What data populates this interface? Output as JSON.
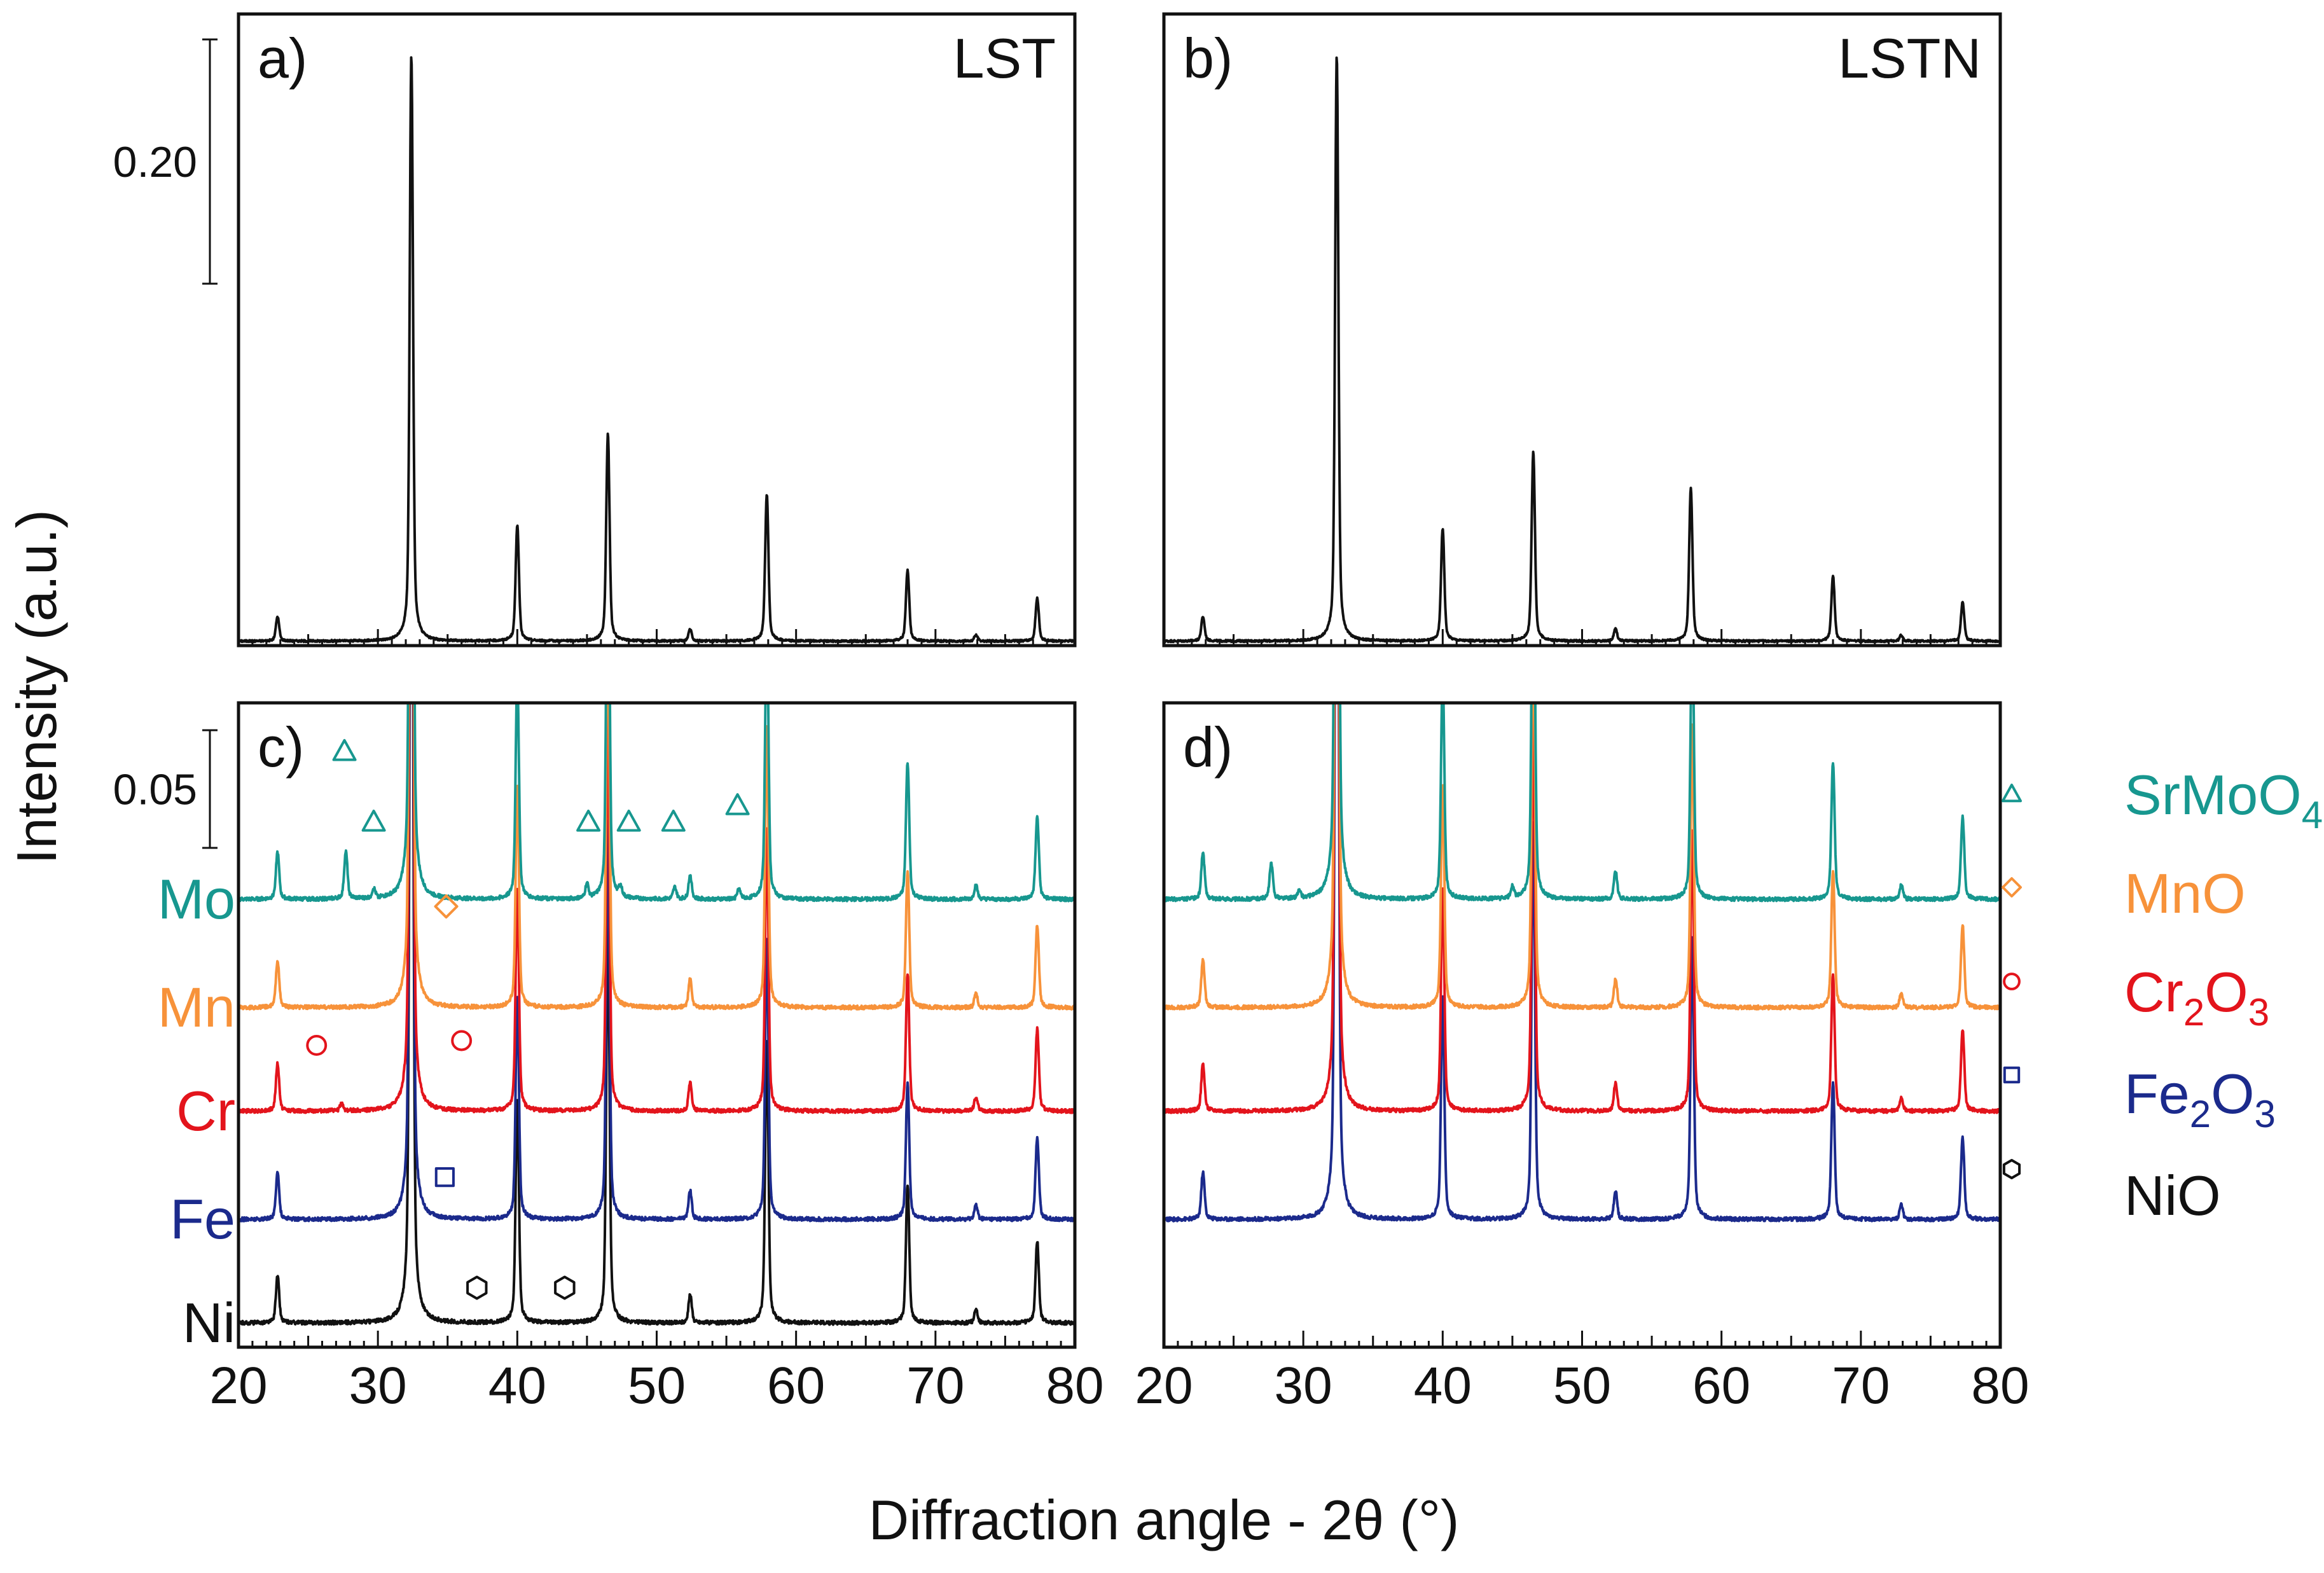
{
  "figure": {
    "xlabel": "Diffraction angle - 2θ (°)",
    "ylabel": "Intensity (a.u.)"
  },
  "colors": {
    "Mo": "#17978f",
    "Mn": "#f7923a",
    "Cr": "#e3141c",
    "Fe": "#1b2a8c",
    "Ni": "#111111"
  },
  "chart_data": [
    {
      "type": "line",
      "panel": "a)",
      "title": "LST",
      "xlim": [
        20,
        80
      ],
      "x_ticks": [
        20,
        30,
        40,
        50,
        60,
        70,
        80
      ],
      "scale_bar": {
        "label": "0.20",
        "value": 0.2
      },
      "series": [
        {
          "color": "#111111",
          "peaks": [
            [
              22.8,
              0.02
            ],
            [
              32.4,
              0.48
            ],
            [
              40.0,
              0.095
            ],
            [
              46.5,
              0.17
            ],
            [
              52.4,
              0.01
            ],
            [
              57.9,
              0.12
            ],
            [
              68.0,
              0.058
            ],
            [
              72.9,
              0.005
            ],
            [
              77.3,
              0.035
            ]
          ]
        }
      ]
    },
    {
      "type": "line",
      "panel": "b)",
      "title": "LSTN",
      "xlim": [
        20,
        80
      ],
      "x_ticks": [
        20,
        30,
        40,
        50,
        60,
        70,
        80
      ],
      "series": [
        {
          "color": "#111111",
          "peaks": [
            [
              22.8,
              0.02
            ],
            [
              32.4,
              0.48
            ],
            [
              40.0,
              0.092
            ],
            [
              46.5,
              0.155
            ],
            [
              52.4,
              0.01
            ],
            [
              57.8,
              0.125
            ],
            [
              68.0,
              0.053
            ],
            [
              72.9,
              0.005
            ],
            [
              77.3,
              0.032
            ]
          ]
        }
      ]
    },
    {
      "type": "line",
      "panel": "c)",
      "xlim": [
        20,
        80
      ],
      "x_ticks": [
        20,
        30,
        40,
        50,
        60,
        70,
        80
      ],
      "scale_bar": {
        "label": "0.05",
        "value": 0.05
      },
      "series": [
        {
          "name": "Ni",
          "color": "#111111",
          "offset": 0,
          "peaks": [
            [
              22.8,
              0.02
            ],
            [
              32.4,
              0.48
            ],
            [
              40.0,
              0.095
            ],
            [
              46.5,
              0.17
            ],
            [
              52.4,
              0.012
            ],
            [
              57.9,
              0.12
            ],
            [
              68.0,
              0.058
            ],
            [
              72.9,
              0.006
            ],
            [
              77.3,
              0.035
            ]
          ]
        },
        {
          "name": "Fe",
          "color": "#1b2a8c",
          "offset": 0.044,
          "peaks": [
            [
              22.8,
              0.02
            ],
            [
              32.4,
              0.48
            ],
            [
              40.0,
              0.095
            ],
            [
              46.5,
              0.17
            ],
            [
              52.4,
              0.012
            ],
            [
              57.9,
              0.12
            ],
            [
              68.0,
              0.058
            ],
            [
              72.9,
              0.006
            ],
            [
              77.3,
              0.035
            ]
          ]
        },
        {
          "name": "Cr",
          "color": "#e3141c",
          "offset": 0.09,
          "peaks": [
            [
              22.8,
              0.02
            ],
            [
              27.4,
              0.003
            ],
            [
              32.4,
              0.48
            ],
            [
              40.0,
              0.095
            ],
            [
              46.5,
              0.17
            ],
            [
              52.4,
              0.012
            ],
            [
              57.9,
              0.12
            ],
            [
              68.0,
              0.058
            ],
            [
              72.9,
              0.006
            ],
            [
              77.3,
              0.035
            ]
          ]
        },
        {
          "name": "Mn",
          "color": "#f7923a",
          "offset": 0.134,
          "peaks": [
            [
              22.8,
              0.02
            ],
            [
              32.4,
              0.48
            ],
            [
              40.0,
              0.095
            ],
            [
              46.5,
              0.17
            ],
            [
              52.4,
              0.012
            ],
            [
              57.9,
              0.12
            ],
            [
              68.0,
              0.058
            ],
            [
              72.9,
              0.006
            ],
            [
              77.3,
              0.035
            ]
          ]
        },
        {
          "name": "Mo",
          "color": "#17978f",
          "offset": 0.18,
          "peaks": [
            [
              22.8,
              0.02
            ],
            [
              27.7,
              0.02
            ],
            [
              29.7,
              0.004
            ],
            [
              32.4,
              0.48
            ],
            [
              40.0,
              0.095
            ],
            [
              45.0,
              0.006
            ],
            [
              46.5,
              0.17
            ],
            [
              47.4,
              0.004
            ],
            [
              51.3,
              0.005
            ],
            [
              52.4,
              0.01
            ],
            [
              55.9,
              0.004
            ],
            [
              57.9,
              0.12
            ],
            [
              68.0,
              0.058
            ],
            [
              72.9,
              0.006
            ],
            [
              77.3,
              0.035
            ]
          ]
        }
      ],
      "markers": [
        {
          "shape": "triangle",
          "color": "#17978f",
          "points": [
            [
              27.6,
              0.243
            ],
            [
              29.7,
              0.213
            ],
            [
              45.1,
              0.213
            ],
            [
              48.0,
              0.213
            ],
            [
              51.2,
              0.213
            ],
            [
              55.8,
              0.22
            ]
          ]
        },
        {
          "shape": "diamond",
          "color": "#f7923a",
          "points": [
            [
              34.9,
              0.177
            ]
          ]
        },
        {
          "shape": "circle",
          "color": "#e3141c",
          "points": [
            [
              25.6,
              0.118
            ],
            [
              36.0,
              0.12
            ]
          ]
        },
        {
          "shape": "square",
          "color": "#1b2a8c",
          "points": [
            [
              34.8,
              0.062
            ]
          ]
        },
        {
          "shape": "hexagon",
          "color": "#111111",
          "points": [
            [
              37.1,
              0.015
            ],
            [
              43.4,
              0.015
            ]
          ]
        }
      ]
    },
    {
      "type": "line",
      "panel": "d)",
      "xlim": [
        20,
        80
      ],
      "x_ticks": [
        20,
        30,
        40,
        50,
        60,
        70,
        80
      ],
      "series": [
        {
          "name": "Fe",
          "color": "#1b2a8c",
          "offset": 0.044,
          "peaks": [
            [
              22.8,
              0.02
            ],
            [
              32.4,
              0.48
            ],
            [
              40.0,
              0.095
            ],
            [
              46.5,
              0.17
            ],
            [
              52.4,
              0.012
            ],
            [
              57.9,
              0.12
            ],
            [
              68.0,
              0.058
            ],
            [
              72.9,
              0.006
            ],
            [
              77.3,
              0.035
            ]
          ]
        },
        {
          "name": "Cr",
          "color": "#e3141c",
          "offset": 0.09,
          "peaks": [
            [
              22.8,
              0.02
            ],
            [
              32.4,
              0.48
            ],
            [
              40.0,
              0.095
            ],
            [
              46.5,
              0.17
            ],
            [
              52.4,
              0.012
            ],
            [
              57.9,
              0.12
            ],
            [
              68.0,
              0.058
            ],
            [
              72.9,
              0.006
            ],
            [
              77.3,
              0.035
            ]
          ]
        },
        {
          "name": "Mn",
          "color": "#f7923a",
          "offset": 0.134,
          "peaks": [
            [
              22.8,
              0.02
            ],
            [
              32.4,
              0.48
            ],
            [
              40.0,
              0.095
            ],
            [
              46.5,
              0.17
            ],
            [
              52.4,
              0.012
            ],
            [
              57.9,
              0.12
            ],
            [
              68.0,
              0.058
            ],
            [
              72.9,
              0.006
            ],
            [
              77.3,
              0.035
            ]
          ]
        },
        {
          "name": "Mo",
          "color": "#17978f",
          "offset": 0.18,
          "peaks": [
            [
              22.8,
              0.02
            ],
            [
              27.7,
              0.015
            ],
            [
              29.7,
              0.003
            ],
            [
              32.4,
              0.48
            ],
            [
              40.0,
              0.095
            ],
            [
              45.0,
              0.005
            ],
            [
              46.5,
              0.17
            ],
            [
              52.4,
              0.012
            ],
            [
              57.9,
              0.12
            ],
            [
              68.0,
              0.058
            ],
            [
              72.9,
              0.006
            ],
            [
              77.3,
              0.035
            ]
          ]
        }
      ]
    }
  ],
  "legend": [
    {
      "label": "SrMoO",
      "sub": "4",
      "shape": "triangle",
      "color": "#17978f"
    },
    {
      "label": "MnO",
      "shape": "diamond",
      "color": "#f7923a"
    },
    {
      "label": "Cr2O3",
      "parts": [
        "Cr",
        "2",
        "O",
        "3"
      ],
      "shape": "circle",
      "color": "#e3141c"
    },
    {
      "label": "Fe2O3",
      "parts": [
        "Fe",
        "2",
        "O",
        "3"
      ],
      "shape": "square",
      "color": "#1b2a8c"
    },
    {
      "label": "NiO",
      "shape": "hexagon",
      "color": "#111111"
    }
  ]
}
